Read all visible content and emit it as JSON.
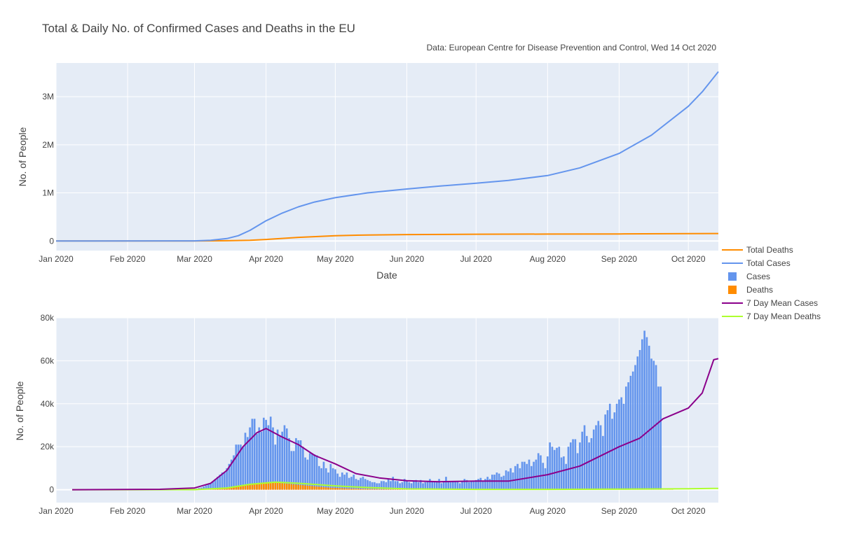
{
  "title": "Total & Daily No. of Confirmed Cases and Deaths in the EU",
  "source": "Data: European Centre for Disease Prevention and Control, Wed 14 Oct 2020",
  "colors": {
    "background": "#e5ecf6",
    "grid": "#ffffff",
    "total_deaths": "#ff8c00",
    "total_cases": "#6495ed",
    "cases_bar": "#6495ed",
    "deaths_bar": "#ff8c00",
    "mean_cases": "#8b008b",
    "mean_deaths": "#adff2f"
  },
  "legend": [
    {
      "name": "Total Deaths",
      "kind": "line",
      "color": "#ff8c00"
    },
    {
      "name": "Total Cases",
      "kind": "line",
      "color": "#6495ed"
    },
    {
      "name": "Cases",
      "kind": "bar",
      "color": "#6495ed"
    },
    {
      "name": "Deaths",
      "kind": "bar",
      "color": "#ff8c00"
    },
    {
      "name": "7 Day Mean Cases",
      "kind": "line",
      "color": "#8b008b"
    },
    {
      "name": "7 Day Mean Deaths",
      "kind": "line",
      "color": "#adff2f"
    }
  ],
  "chart_data": [
    {
      "type": "line",
      "xlabel": "Date",
      "ylabel": "No. of People",
      "xlim": [
        "2020-01-01",
        "2020-10-14"
      ],
      "ylim": [
        -200000,
        3700000
      ],
      "x_ticks": [
        "Jan 2020",
        "Feb 2020",
        "Mar 2020",
        "Apr 2020",
        "May 2020",
        "Jun 2020",
        "Jul 2020",
        "Aug 2020",
        "Sep 2020",
        "Oct 2020"
      ],
      "x_tick_dates": [
        "2020-01-01",
        "2020-02-01",
        "2020-03-01",
        "2020-04-01",
        "2020-05-01",
        "2020-06-01",
        "2020-07-01",
        "2020-08-01",
        "2020-09-01",
        "2020-10-01"
      ],
      "y_ticks": [
        0,
        1000000,
        2000000,
        3000000
      ],
      "y_tick_labels": [
        "0",
        "1M",
        "2M",
        "3M"
      ],
      "series": [
        {
          "name": "Total Deaths",
          "x": [
            "2020-01-01",
            "2020-03-01",
            "2020-03-15",
            "2020-03-25",
            "2020-04-01",
            "2020-04-15",
            "2020-05-01",
            "2020-05-15",
            "2020-06-01",
            "2020-07-01",
            "2020-08-01",
            "2020-09-01",
            "2020-10-01",
            "2020-10-14"
          ],
          "values": [
            0,
            1000,
            5000,
            15000,
            32000,
            75000,
            110000,
            125000,
            133000,
            140000,
            144000,
            147000,
            152000,
            155000
          ]
        },
        {
          "name": "Total Cases",
          "x": [
            "2020-01-01",
            "2020-03-01",
            "2020-03-08",
            "2020-03-15",
            "2020-03-20",
            "2020-03-25",
            "2020-04-01",
            "2020-04-08",
            "2020-04-15",
            "2020-04-22",
            "2020-05-01",
            "2020-05-15",
            "2020-06-01",
            "2020-06-15",
            "2020-07-01",
            "2020-07-15",
            "2020-08-01",
            "2020-08-15",
            "2020-09-01",
            "2020-09-15",
            "2020-10-01",
            "2020-10-07",
            "2020-10-14"
          ],
          "values": [
            0,
            2000,
            15000,
            50000,
            110000,
            220000,
            420000,
            580000,
            710000,
            810000,
            900000,
            1000000,
            1080000,
            1140000,
            1200000,
            1260000,
            1360000,
            1520000,
            1820000,
            2200000,
            2800000,
            3100000,
            3520000
          ]
        }
      ]
    },
    {
      "type": "bar",
      "ylabel": "No. of People",
      "xlim": [
        "2020-01-01",
        "2020-10-14"
      ],
      "ylim": [
        -6000,
        80000
      ],
      "x_ticks": [
        "Jan 2020",
        "Feb 2020",
        "Mar 2020",
        "Apr 2020",
        "May 2020",
        "Jun 2020",
        "Jul 2020",
        "Aug 2020",
        "Sep 2020",
        "Oct 2020"
      ],
      "x_tick_dates": [
        "2020-01-01",
        "2020-02-01",
        "2020-03-01",
        "2020-04-01",
        "2020-05-01",
        "2020-06-01",
        "2020-07-01",
        "2020-08-01",
        "2020-09-01",
        "2020-10-01"
      ],
      "y_ticks": [
        0,
        20000,
        40000,
        60000,
        80000
      ],
      "y_tick_labels": [
        "0",
        "20k",
        "40k",
        "60k",
        "80k"
      ],
      "bar_start": "2020-03-01",
      "series": [
        {
          "name": "Cases",
          "values": [
            300,
            500,
            800,
            1000,
            1500,
            2000,
            2500,
            3000,
            4000,
            5000,
            6000,
            7000,
            8000,
            8000,
            10000,
            12000,
            14000,
            16000,
            21000,
            21000,
            21000,
            20000,
            26500,
            24500,
            29000,
            33000,
            33000,
            26000,
            29000,
            27000,
            33500,
            32500,
            30000,
            34000,
            29000,
            21000,
            28000,
            25000,
            27000,
            30000,
            28500,
            24000,
            18000,
            18000,
            24000,
            23000,
            23000,
            20000,
            15000,
            14000,
            17000,
            17000,
            16500,
            16000,
            11000,
            10000,
            13000,
            10000,
            8000,
            12000,
            10000,
            9500,
            7500,
            6000,
            8000,
            7000,
            8000,
            5500,
            6000,
            7000,
            5000,
            4500,
            5500,
            6000,
            5000,
            4500,
            4000,
            3500,
            3500,
            3000,
            3000,
            4000,
            4000,
            3500,
            5000,
            4000,
            6000,
            4000,
            4000,
            3000,
            3500,
            5000,
            4000,
            3500,
            3000,
            4000,
            4500,
            3500,
            4500,
            3000,
            3500,
            4000,
            5000,
            4000,
            3500,
            4000,
            5000,
            3000,
            4000,
            6000,
            4000,
            3500,
            4000,
            4000,
            4000,
            3000,
            4000,
            5000,
            4500,
            3500,
            4000,
            4000,
            4500,
            5000,
            5500,
            4000,
            5000,
            6000,
            5000,
            7000,
            7000,
            8000,
            7500,
            6000,
            6500,
            9000,
            8500,
            10000,
            8000,
            11000,
            12000,
            10000,
            13000,
            13000,
            12000,
            14000,
            11000,
            13000,
            14000,
            17000,
            16000,
            12500,
            10000,
            15500,
            22000,
            20000,
            18500,
            19500,
            20000,
            15000,
            15500,
            12000,
            20000,
            22000,
            23500,
            23500,
            17000,
            22000,
            27000,
            30000,
            25000,
            22000,
            24000,
            28000,
            30000,
            32000,
            30000,
            25000,
            35000,
            37000,
            40000,
            33000,
            36000,
            40000,
            42000,
            43000,
            40000,
            48000,
            50000,
            53000,
            55000,
            58000,
            62000,
            65000,
            70000,
            74000,
            71000,
            67000,
            61000,
            60000,
            58000,
            48000,
            48000
          ],
          "note": "daily bars from 2020-03-01; earlier days near 0"
        },
        {
          "name": "Deaths",
          "values": [
            20,
            30,
            40,
            60,
            80,
            100,
            150,
            200,
            250,
            300,
            400,
            500,
            600,
            700,
            800,
            900,
            1000,
            1200,
            1400,
            1600,
            1800,
            2000,
            2200,
            2500,
            2700,
            2900,
            3000,
            3100,
            3200,
            3300,
            3400,
            3500,
            3600,
            3500,
            3400,
            3300,
            3200,
            3100,
            3000,
            2900,
            2800,
            2700,
            2600,
            2500,
            2400,
            2300,
            2200,
            2100,
            2000,
            1900,
            1800,
            1700,
            1600,
            1500,
            1400,
            1300,
            1200,
            1100,
            1000,
            950,
            900,
            850,
            800,
            750,
            700,
            650,
            600,
            550,
            500,
            480,
            460,
            440,
            420,
            400,
            380,
            360,
            340,
            320,
            300,
            280,
            260,
            250,
            240,
            230,
            220,
            210,
            200,
            190,
            180,
            170,
            160,
            150,
            150,
            150,
            150,
            150,
            150,
            150,
            150,
            150,
            150,
            150,
            150,
            150,
            150,
            150,
            150,
            150,
            150,
            150,
            150,
            150,
            150,
            150,
            150,
            150,
            150,
            150,
            150,
            150,
            150,
            150,
            150,
            150,
            150,
            150,
            150,
            150,
            150,
            150,
            150,
            150,
            150,
            150,
            150,
            150,
            150,
            150,
            150,
            150,
            150,
            150,
            150,
            150,
            200,
            200,
            200,
            200,
            200,
            200,
            200,
            200,
            200,
            200,
            250,
            250,
            250,
            250,
            250,
            250,
            250,
            250,
            250,
            250,
            300,
            300,
            300,
            300,
            300,
            300,
            300,
            300,
            300,
            300,
            350,
            350,
            350,
            350,
            350,
            350,
            350,
            350,
            350,
            350,
            400,
            400,
            400,
            400,
            400,
            400,
            400,
            400,
            400,
            400,
            500,
            500,
            500,
            500,
            500,
            500,
            500,
            500,
            500,
            500,
            600,
            600,
            600,
            600
          ]
        },
        {
          "name": "7 Day Mean Cases",
          "x": [
            "2020-01-08",
            "2020-02-15",
            "2020-03-01",
            "2020-03-08",
            "2020-03-15",
            "2020-03-22",
            "2020-03-28",
            "2020-04-01",
            "2020-04-08",
            "2020-04-15",
            "2020-04-22",
            "2020-05-01",
            "2020-05-10",
            "2020-05-20",
            "2020-06-01",
            "2020-06-15",
            "2020-07-01",
            "2020-07-15",
            "2020-08-01",
            "2020-08-15",
            "2020-09-01",
            "2020-09-10",
            "2020-09-20",
            "2020-10-01",
            "2020-10-07",
            "2020-10-12",
            "2020-10-14"
          ],
          "values": [
            0,
            200,
            800,
            3000,
            9000,
            20000,
            26500,
            28500,
            24500,
            21000,
            16000,
            12000,
            7500,
            5500,
            4200,
            3700,
            4000,
            4000,
            7000,
            11000,
            20000,
            24000,
            33000,
            38000,
            45000,
            60500,
            61000
          ]
        },
        {
          "name": "7 Day Mean Deaths",
          "x": [
            "2020-01-08",
            "2020-03-01",
            "2020-03-15",
            "2020-03-25",
            "2020-04-05",
            "2020-04-15",
            "2020-05-01",
            "2020-05-15",
            "2020-06-01",
            "2020-07-01",
            "2020-08-01",
            "2020-09-01",
            "2020-10-01",
            "2020-10-14"
          ],
          "values": [
            0,
            40,
            800,
            2500,
            3500,
            3000,
            1800,
            1000,
            400,
            150,
            150,
            250,
            450,
            600
          ]
        }
      ]
    }
  ]
}
